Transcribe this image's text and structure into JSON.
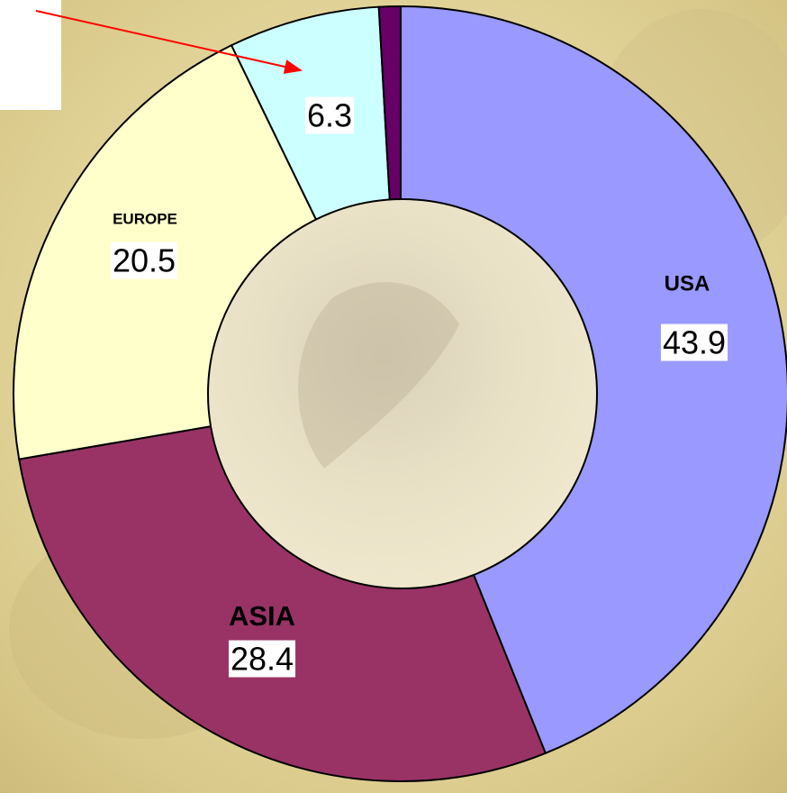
{
  "chart_data": {
    "type": "donut",
    "categories": [
      "USA",
      "ASIA",
      "EUROPE",
      null,
      null
    ],
    "values": [
      43.9,
      28.4,
      20.5,
      6.3,
      0.9
    ],
    "colors": [
      "#9999ff",
      "#993366",
      "#ffffcc",
      "#ccffff",
      "#660066"
    ],
    "value_labels": [
      "43.9",
      "28.4",
      "20.5",
      "6.3",
      null
    ],
    "start_angle": 0,
    "direction": "clockwise"
  }
}
